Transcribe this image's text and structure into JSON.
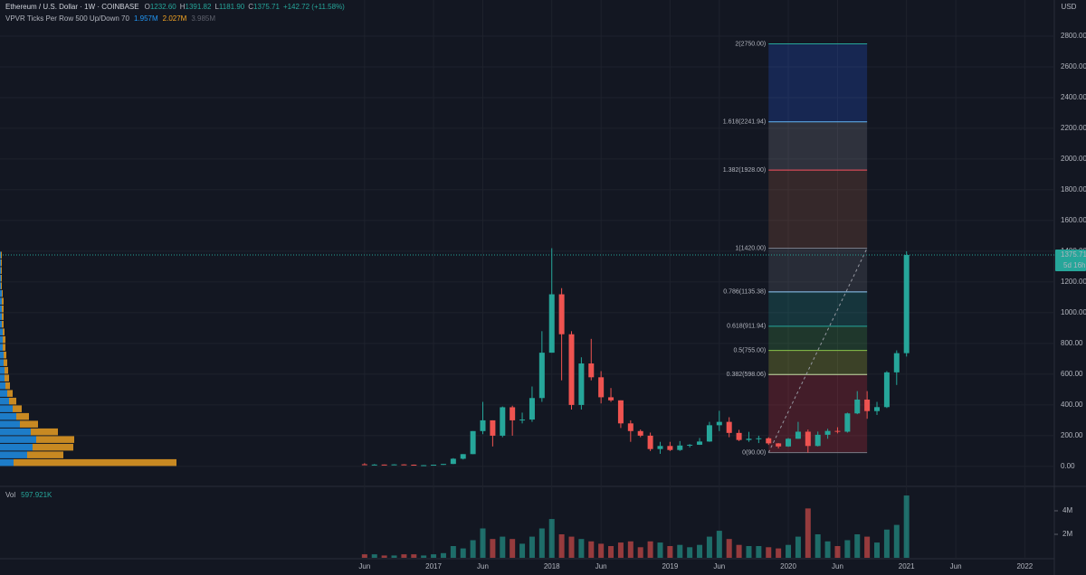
{
  "header": {
    "symbol": "Ethereum / U.S. Dollar · 1W · COINBASE",
    "ohlc": [
      {
        "k": "O",
        "v": "1232.60"
      },
      {
        "k": "H",
        "v": "1391.82"
      },
      {
        "k": "L",
        "v": "1181.90"
      },
      {
        "k": "C",
        "v": "1375.71"
      }
    ],
    "change": "+142.72 (+11.58%)"
  },
  "indicator": {
    "name": "VPVR Ticks Per Row 500 Up/Down 70",
    "values": [
      "1.957M",
      "2.027M",
      "3.985M"
    ]
  },
  "chart_data": [
    {
      "type": "candlestick",
      "currency": "USD",
      "x": [
        "2016-06",
        "2016-07",
        "2016-08",
        "2016-09",
        "2016-10",
        "2016-11",
        "2016-12",
        "2017-01",
        "2017-02",
        "2017-03",
        "2017-04",
        "2017-05",
        "2017-06",
        "2017-07",
        "2017-08",
        "2017-09",
        "2017-10",
        "2017-11",
        "2017-12",
        "2018-01",
        "2018-02",
        "2018-03",
        "2018-04",
        "2018-05",
        "2018-06",
        "2018-07",
        "2018-08",
        "2018-09",
        "2018-10",
        "2018-11",
        "2018-12",
        "2019-01",
        "2019-02",
        "2019-03",
        "2019-04",
        "2019-05",
        "2019-06",
        "2019-07",
        "2019-08",
        "2019-09",
        "2019-10",
        "2019-11",
        "2019-12",
        "2020-01",
        "2020-02",
        "2020-03",
        "2020-04",
        "2020-05",
        "2020-06",
        "2020-07",
        "2020-08",
        "2020-09",
        "2020-10",
        "2020-11",
        "2020-12",
        "2021-01"
      ],
      "open": [
        14,
        12,
        12,
        11,
        13,
        11,
        8,
        8,
        11,
        16,
        50,
        80,
        230,
        300,
        200,
        385,
        300,
        305,
        445,
        740,
        1120,
        860,
        400,
        670,
        580,
        450,
        430,
        280,
        230,
        200,
        113,
        133,
        107,
        136,
        141,
        162,
        268,
        290,
        218,
        172,
        180,
        183,
        150,
        130,
        180,
        226,
        133,
        206,
        231,
        226,
        345,
        435,
        360,
        386,
        612,
        737
      ],
      "high": [
        21,
        15,
        12,
        14,
        14,
        12,
        9,
        11,
        16,
        54,
        80,
        230,
        420,
        300,
        390,
        395,
        350,
        520,
        880,
        1420,
        1160,
        880,
        710,
        830,
        620,
        510,
        430,
        300,
        240,
        220,
        160,
        160,
        165,
        145,
        185,
        290,
        362,
        320,
        238,
        225,
        200,
        190,
        152,
        185,
        290,
        240,
        227,
        245,
        255,
        350,
        490,
        490,
        420,
        620,
        755,
        1400
      ],
      "low": [
        11,
        10,
        10,
        11,
        10,
        8,
        7,
        8,
        10,
        15,
        45,
        80,
        210,
        130,
        190,
        200,
        280,
        290,
        420,
        740,
        560,
        370,
        370,
        560,
        410,
        420,
        250,
        160,
        190,
        100,
        82,
        100,
        101,
        124,
        140,
        160,
        230,
        190,
        165,
        160,
        152,
        140,
        117,
        127,
        180,
        90,
        130,
        180,
        215,
        220,
        340,
        310,
        335,
        380,
        530,
        715
      ],
      "close": [
        12,
        12,
        11,
        13,
        11,
        8,
        8,
        11,
        16,
        50,
        80,
        230,
        300,
        200,
        385,
        300,
        305,
        445,
        740,
        1120,
        860,
        400,
        670,
        580,
        450,
        430,
        280,
        230,
        200,
        113,
        133,
        107,
        136,
        141,
        162,
        268,
        290,
        218,
        172,
        180,
        183,
        150,
        130,
        180,
        226,
        133,
        206,
        231,
        226,
        345,
        435,
        360,
        386,
        612,
        737,
        1376
      ],
      "up_color": "#26a69a",
      "down_color": "#ef5350",
      "xlim": [
        "2013-05",
        "2022-04"
      ],
      "ylim": [
        -130,
        3035
      ],
      "xticks": [
        {
          "value": "2016-06",
          "label": "Jun"
        },
        {
          "value": "2017-01",
          "label": "2017"
        },
        {
          "value": "2017-06",
          "label": "Jun"
        },
        {
          "value": "2018-01",
          "label": "2018"
        },
        {
          "value": "2018-06",
          "label": "Jun"
        },
        {
          "value": "2019-01",
          "label": "2019"
        },
        {
          "value": "2019-06",
          "label": "Jun"
        },
        {
          "value": "2020-01",
          "label": "2020"
        },
        {
          "value": "2020-06",
          "label": "Jun"
        },
        {
          "value": "2021-01",
          "label": "2021"
        },
        {
          "value": "2021-06",
          "label": "Jun"
        },
        {
          "value": "2022-01",
          "label": "2022"
        }
      ],
      "yticks": [
        {
          "value": 0,
          "label": "0.00"
        },
        {
          "value": 200,
          "label": "200.00"
        },
        {
          "value": 400,
          "label": "400.00"
        },
        {
          "value": 600,
          "label": "600.00"
        },
        {
          "value": 800,
          "label": "800.00"
        },
        {
          "value": 1000,
          "label": "1000.00"
        },
        {
          "value": 1200,
          "label": "1200.00"
        },
        {
          "value": 1400,
          "label": "1400.00"
        },
        {
          "value": 1600,
          "label": "1600.00"
        },
        {
          "value": 1800,
          "label": "1800.00"
        },
        {
          "value": 2000,
          "label": "2000.00"
        },
        {
          "value": 2200,
          "label": "2200.00"
        },
        {
          "value": 2400,
          "label": "2400.00"
        },
        {
          "value": 2600,
          "label": "2600.00"
        },
        {
          "value": 2800,
          "label": "2800.00"
        }
      ],
      "grid": true,
      "last_price": {
        "value": 1375.71,
        "label": "1375.71"
      },
      "countdown": "5d 16h",
      "fib": {
        "x": [
          "2019-11",
          "2020-09"
        ],
        "levels": [
          {
            "value": 90,
            "label": "0(90.00)",
            "color": "#787b86"
          },
          {
            "value": 598.06,
            "label": "0.382(598.06)",
            "color": "#c5e1a5"
          },
          {
            "value": 755,
            "label": "0.5(755.00)",
            "color": "#8bc34a"
          },
          {
            "value": 911.94,
            "label": "0.618(911.94)",
            "color": "#26a69a"
          },
          {
            "value": 1135.38,
            "label": "0.786(1135.38)",
            "color": "#90caf9"
          },
          {
            "value": 1420,
            "label": "1(1420.00)",
            "color": "#787b86"
          },
          {
            "value": 1928,
            "label": "1.382(1928.00)",
            "color": "#f7525f"
          },
          {
            "value": 2241.94,
            "label": "1.618(2241.94)",
            "color": "#64b5f6"
          },
          {
            "value": 2750,
            "label": "2(2750.00)",
            "color": "#26a69a"
          }
        ]
      },
      "vpvr": {
        "prices": [
          25,
          75,
          125,
          175,
          225,
          275,
          325,
          375,
          425,
          475,
          525,
          575,
          625,
          675,
          725,
          775,
          825,
          875,
          925,
          975,
          1025,
          1075,
          1125,
          1175,
          1225,
          1275,
          1325,
          1375
        ],
        "up": [
          15,
          30,
          36,
          40,
          34,
          22,
          18,
          14,
          10,
          8,
          6,
          5,
          5,
          4,
          4,
          3,
          3,
          3,
          2,
          2,
          2,
          2,
          2,
          1,
          1,
          1,
          1,
          1
        ],
        "down": [
          180,
          40,
          45,
          42,
          30,
          20,
          14,
          10,
          8,
          6,
          5,
          5,
          4,
          4,
          3,
          3,
          3,
          2,
          2,
          2,
          2,
          2,
          1,
          1,
          1,
          1,
          1,
          1
        ],
        "up_color": "#2196f3",
        "down_color": "#f6a623"
      }
    },
    {
      "type": "bar",
      "title": "Vol",
      "last_label": "597.921K",
      "values": [
        0.3,
        0.3,
        0.2,
        0.2,
        0.3,
        0.3,
        0.2,
        0.3,
        0.4,
        1.0,
        0.8,
        1.5,
        2.5,
        1.6,
        1.8,
        1.6,
        1.2,
        1.8,
        2.5,
        3.3,
        2.0,
        1.8,
        1.6,
        1.4,
        1.2,
        1.0,
        1.3,
        1.4,
        0.9,
        1.4,
        1.3,
        1.0,
        1.1,
        0.9,
        1.1,
        1.8,
        2.3,
        1.6,
        1.1,
        1.0,
        1.0,
        0.9,
        0.8,
        1.1,
        1.8,
        4.2,
        2.0,
        1.4,
        1.0,
        1.5,
        2.0,
        1.8,
        1.3,
        2.4,
        2.8,
        5.3
      ],
      "ylim": [
        0,
        5.92
      ],
      "yticks": [
        {
          "value": 2,
          "label": "2M"
        },
        {
          "value": 4,
          "label": "4M"
        }
      ]
    }
  ]
}
